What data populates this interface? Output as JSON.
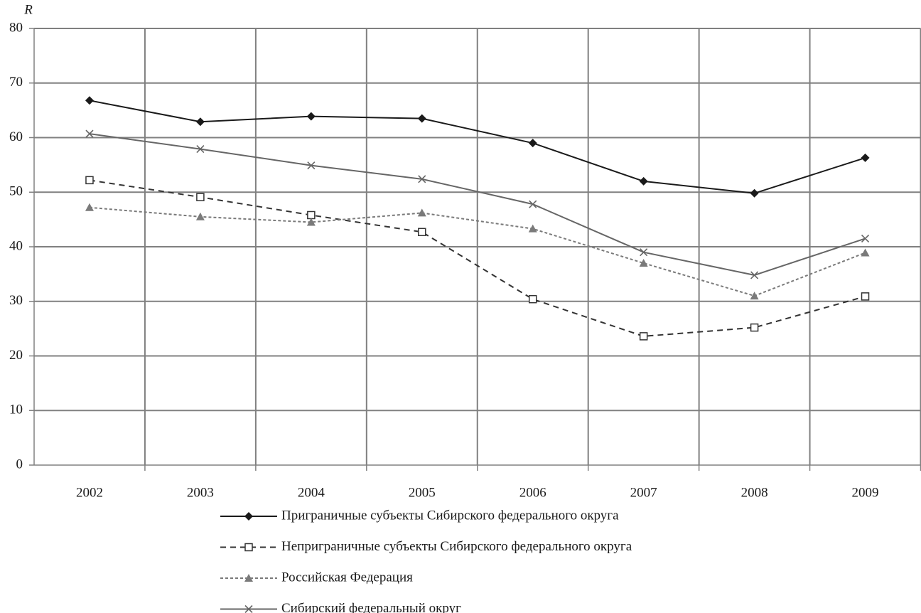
{
  "chart_data": {
    "type": "line",
    "y_label": "R",
    "categories": [
      "2002",
      "2003",
      "2004",
      "2005",
      "2006",
      "2007",
      "2008",
      "2009"
    ],
    "series": [
      {
        "name": "Приграничные субъекты Сибирского федерального округа",
        "color": "#1a1a1a",
        "marker": "diamond",
        "dash": "solid",
        "values": [
          66.8,
          62.9,
          63.9,
          63.5,
          59.0,
          52.0,
          49.8,
          56.3
        ]
      },
      {
        "name": "Неприграничные субъекты Сибирского федерального округа",
        "color": "#333333",
        "marker": "square-open",
        "dash": "dashed",
        "values": [
          52.2,
          49.1,
          45.8,
          42.7,
          30.4,
          23.6,
          25.2,
          30.9
        ]
      },
      {
        "name": "Российская Федерация",
        "color": "#7a7a7a",
        "marker": "triangle",
        "dash": "dotted",
        "values": [
          47.2,
          45.5,
          44.5,
          46.2,
          43.3,
          37.0,
          31.0,
          38.9
        ]
      },
      {
        "name": "Сибирский федеральный округ",
        "color": "#666666",
        "marker": "x",
        "dash": "solid",
        "values": [
          60.7,
          57.9,
          54.9,
          52.4,
          47.8,
          39.0,
          34.8,
          41.5
        ]
      }
    ],
    "ylim": [
      0,
      80
    ],
    "yticks": [
      0,
      10,
      20,
      30,
      40,
      50,
      60,
      70,
      80
    ],
    "grid": true,
    "legend": "bottom"
  }
}
